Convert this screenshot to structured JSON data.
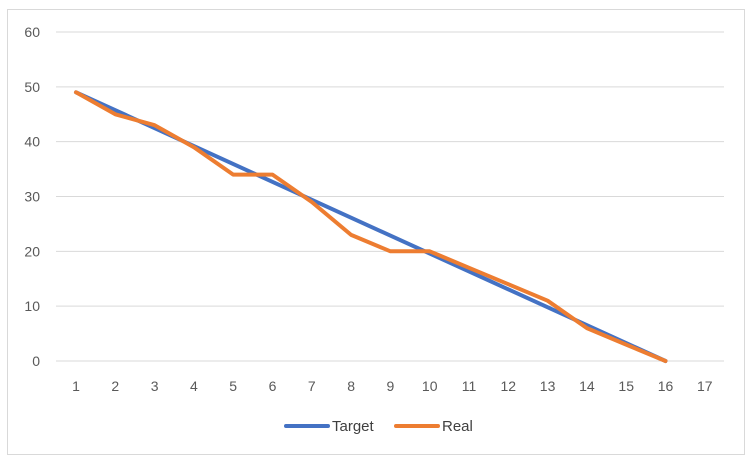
{
  "chart_data": {
    "type": "line",
    "title": "",
    "xlabel": "",
    "ylabel": "",
    "x": [
      1,
      2,
      3,
      4,
      5,
      6,
      7,
      8,
      9,
      10,
      11,
      12,
      13,
      14,
      15,
      16,
      17
    ],
    "xtick_labels": [
      "1",
      "2",
      "3",
      "4",
      "5",
      "6",
      "7",
      "8",
      "9",
      "10",
      "11",
      "12",
      "13",
      "14",
      "15",
      "16",
      "17"
    ],
    "ylim": [
      0,
      60
    ],
    "yticks": [
      0,
      10,
      20,
      30,
      40,
      50,
      60
    ],
    "ytick_labels": [
      "0",
      "10",
      "20",
      "30",
      "40",
      "50",
      "60"
    ],
    "grid": "horizontal",
    "legend_position": "bottom",
    "series": [
      {
        "name": "Target",
        "color": "#4472c4",
        "x": [
          1,
          16
        ],
        "values": [
          49,
          0
        ]
      },
      {
        "name": "Real",
        "color": "#ed7d31",
        "x": [
          1,
          2,
          3,
          4,
          5,
          6,
          7,
          8,
          9,
          10,
          11,
          12,
          13,
          14,
          15,
          16
        ],
        "values": [
          49,
          45,
          43,
          39,
          34,
          34,
          29,
          23,
          20,
          20,
          17,
          14,
          11,
          6,
          3,
          0
        ]
      }
    ]
  }
}
